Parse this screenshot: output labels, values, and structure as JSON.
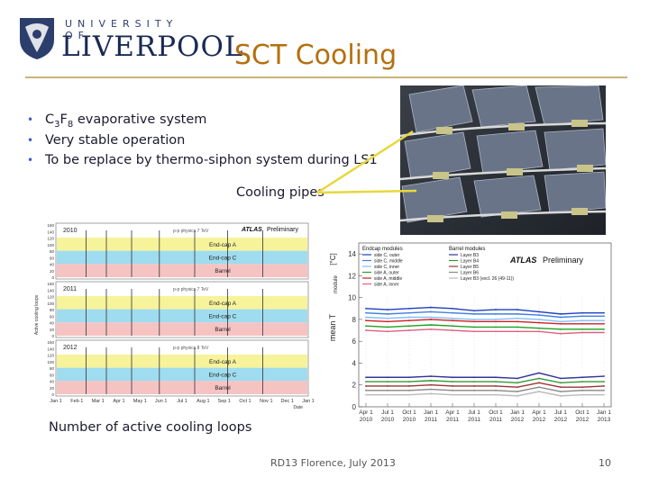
{
  "header": {
    "university_line": "UNIVERSITY OF",
    "university_name": "LIVERPOOL",
    "title": "SCT Cooling"
  },
  "bullets": [
    {
      "lead": "C",
      "sub1": "3",
      "mid": "F",
      "sub2": "8",
      "rest": " evaporative system"
    },
    {
      "text": "Very stable operation"
    },
    {
      "text": "To be replace by thermo-siphon system during LS1"
    }
  ],
  "photo": {
    "label": "Cooling pipes",
    "icon": "detector-photo"
  },
  "left_chart": {
    "caption": "Number of active cooling loops",
    "ylabel": "Active cooling loops",
    "atlas_label": "ATLAS",
    "atlas_sub": "Preliminary",
    "panels": [
      {
        "year": "2010",
        "note": "p-p physics 7 TeV",
        "bands": [
          "End-cap A",
          "End-cap C",
          "Barrel"
        ]
      },
      {
        "year": "2011",
        "note": "p-p physics 7 TeV",
        "bands": [
          "End-cap A",
          "End-cap C",
          "Barrel"
        ]
      },
      {
        "year": "2012",
        "note": "p-p physics 8 TeV",
        "bands": [
          "End-cap A",
          "End-cap C",
          "Barrel"
        ]
      }
    ],
    "yticks": [
      "160",
      "140",
      "120",
      "100",
      "80",
      "60",
      "40",
      "20",
      "0"
    ],
    "xticks": [
      "Jan 1",
      "Feb 1",
      "Mar 1",
      "Apr 1",
      "May 1",
      "Jun 1",
      "Jul 1",
      "Aug 1",
      "Sep 1",
      "Oct 1",
      "Nov 1",
      "Dec 1",
      "Jan 1"
    ],
    "xlabel": "Date",
    "band_colors": [
      "#f6f39a",
      "#9fdcef",
      "#f6c3c3"
    ]
  },
  "chart_data": {
    "type": "line",
    "ylabel": "mean T",
    "ylabel_sub": "module",
    "yunit": "[°C]",
    "atlas_label": "ATLAS",
    "atlas_sub": "Preliminary",
    "ylim": [
      0,
      15
    ],
    "yticks": [
      "0",
      "2",
      "4",
      "6",
      "8",
      "10",
      "12",
      "14"
    ],
    "xticks": [
      {
        "line1": "Apr 1",
        "line2": "2010"
      },
      {
        "line1": "Jul 1",
        "line2": "2010"
      },
      {
        "line1": "Oct 1",
        "line2": "2010"
      },
      {
        "line1": "Jan 1",
        "line2": "2011"
      },
      {
        "line1": "Apr 1",
        "line2": "2011"
      },
      {
        "line1": "Jul 1",
        "line2": "2011"
      },
      {
        "line1": "Oct 1",
        "line2": "2011"
      },
      {
        "line1": "Jan 1",
        "line2": "2012"
      },
      {
        "line1": "Apr 1",
        "line2": "2012"
      },
      {
        "line1": "Jul 1",
        "line2": "2012"
      },
      {
        "line1": "Oct 1",
        "line2": "2012"
      },
      {
        "line1": "Jan 1",
        "line2": "2013"
      }
    ],
    "legend_endcap_title": "Endcap modules",
    "legend_barrel_title": "Barrel modules",
    "series": [
      {
        "name": "side C, outer",
        "group": "endcap",
        "color": "#1f3fbf",
        "values": [
          9.0,
          8.9,
          9.0,
          9.1,
          9.0,
          8.8,
          8.9,
          8.9,
          8.7,
          8.5,
          8.6,
          8.6
        ]
      },
      {
        "name": "side C, middle",
        "group": "endcap",
        "color": "#3f7fdf",
        "values": [
          8.6,
          8.5,
          8.6,
          8.7,
          8.6,
          8.5,
          8.5,
          8.5,
          8.4,
          8.2,
          8.3,
          8.3
        ]
      },
      {
        "name": "side C, inner",
        "group": "endcap",
        "color": "#7fbfff",
        "values": [
          8.2,
          8.1,
          8.2,
          8.2,
          8.1,
          8.0,
          8.0,
          8.1,
          8.0,
          7.8,
          7.9,
          7.9
        ]
      },
      {
        "name": "side A, outer",
        "group": "endcap",
        "color": "#20a020",
        "values": [
          7.4,
          7.3,
          7.4,
          7.5,
          7.4,
          7.3,
          7.3,
          7.3,
          7.2,
          7.1,
          7.1,
          7.1
        ]
      },
      {
        "name": "side A, middle",
        "group": "endcap",
        "color": "#cc2020",
        "values": [
          7.9,
          7.8,
          7.9,
          8.0,
          7.9,
          7.8,
          7.8,
          7.8,
          7.7,
          7.6,
          7.6,
          7.6
        ]
      },
      {
        "name": "side A, inner",
        "group": "endcap",
        "color": "#e06080",
        "values": [
          7.0,
          6.9,
          7.0,
          7.1,
          7.0,
          6.9,
          6.9,
          6.9,
          6.9,
          6.7,
          6.8,
          6.8
        ]
      },
      {
        "name": "Layer B3",
        "group": "barrel",
        "color": "#333399",
        "values": [
          2.7,
          2.7,
          2.7,
          2.8,
          2.7,
          2.7,
          2.7,
          2.6,
          3.1,
          2.6,
          2.7,
          2.8
        ]
      },
      {
        "name": "Layer B4",
        "group": "barrel",
        "color": "#339933",
        "values": [
          2.3,
          2.3,
          2.3,
          2.4,
          2.3,
          2.3,
          2.3,
          2.2,
          2.6,
          2.2,
          2.3,
          2.3
        ]
      },
      {
        "name": "Layer B5",
        "group": "barrel",
        "color": "#993333",
        "values": [
          1.9,
          1.9,
          1.9,
          2.0,
          1.9,
          1.9,
          1.9,
          1.8,
          2.2,
          1.8,
          1.8,
          1.9
        ]
      },
      {
        "name": "Layer B6",
        "group": "barrel",
        "color": "#888888",
        "values": [
          1.5,
          1.5,
          1.5,
          1.6,
          1.5,
          1.5,
          1.5,
          1.4,
          1.8,
          1.4,
          1.5,
          1.5
        ]
      },
      {
        "name": "Layer B3 (excl. 26 (49-11))",
        "group": "barrel",
        "color": "#bbbbbb",
        "values": [
          1.1,
          1.1,
          1.1,
          1.2,
          1.1,
          1.1,
          1.1,
          1.0,
          1.4,
          1.0,
          1.1,
          1.1
        ]
      }
    ]
  },
  "footer": {
    "conference": "RD13 Florence, July 2013",
    "page": "10"
  },
  "colors": {
    "title": "#b3700f",
    "rule": "#c9b27a",
    "bullet_dot": "#3a5fcc",
    "arrow": "#e8d83a"
  }
}
